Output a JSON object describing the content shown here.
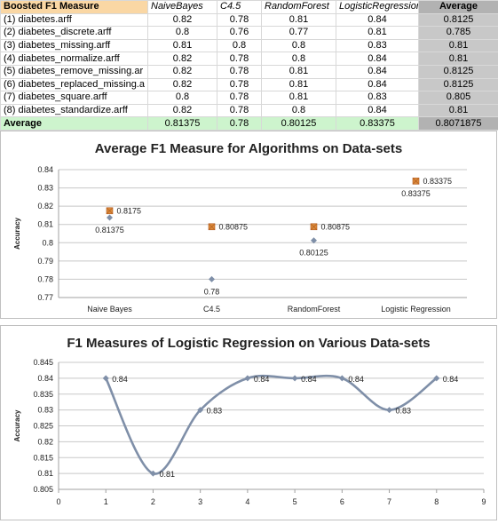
{
  "table": {
    "header": [
      "Boosted F1 Measure",
      "NaiveBayes",
      "C4.5",
      "RandomForest",
      "LogisticRegression",
      "Average"
    ],
    "rows": [
      [
        "(1) diabetes.arff",
        "0.82",
        "0.78",
        "0.81",
        "0.84",
        "0.8125"
      ],
      [
        "(2) diabetes_discrete.arff",
        "0.8",
        "0.76",
        "0.77",
        "0.81",
        "0.785"
      ],
      [
        "(3) diabetes_missing.arff",
        "0.81",
        "0.8",
        "0.8",
        "0.83",
        "0.81"
      ],
      [
        "(4) diabetes_normalize.arff",
        "0.82",
        "0.78",
        "0.8",
        "0.84",
        "0.81"
      ],
      [
        "(5) diabetes_remove_missing.ar",
        "0.82",
        "0.78",
        "0.81",
        "0.84",
        "0.8125"
      ],
      [
        "(6) diabetes_replaced_missing.a",
        "0.82",
        "0.78",
        "0.81",
        "0.84",
        "0.8125"
      ],
      [
        "(7) diabetes_square.arff",
        "0.8",
        "0.78",
        "0.81",
        "0.83",
        "0.805"
      ],
      [
        "(8) diabetes_standardize.arff",
        "0.82",
        "0.78",
        "0.8",
        "0.84",
        "0.81"
      ]
    ],
    "footer": [
      "Average",
      "0.81375",
      "0.78",
      "0.80125",
      "0.83375",
      "0.8071875"
    ]
  },
  "chart_data": [
    {
      "type": "scatter",
      "title": "Average F1 Measure for Algorithms on Data-sets",
      "xlabel": "",
      "ylabel": "Accuracy",
      "categories": [
        "Naive Bayes",
        "C4.5",
        "RandomForest",
        "Logistic Regression"
      ],
      "ylim": [
        0.77,
        0.84
      ],
      "yticks": [
        "0.77",
        "0.78",
        "0.79",
        "0.8",
        "0.81",
        "0.82",
        "0.83",
        "0.84"
      ],
      "grid": true,
      "series": [
        {
          "values": [
            0.81375,
            0.78,
            0.80125,
            0.83375
          ],
          "labels": [
            "0.81375",
            "0.78",
            "0.80125",
            "0.83375"
          ],
          "color": "#7f8fa8",
          "marker": "diamond"
        },
        {
          "values": [
            0.8175,
            0.80875,
            0.80875,
            0.83375
          ],
          "labels": [
            "0.8175",
            "0.80875",
            "0.80875",
            "0.83375"
          ],
          "color": "#d98a3a",
          "marker": "square"
        }
      ]
    },
    {
      "type": "line",
      "title": "F1 Measures of Logistic Regression on Various Data-sets",
      "xlabel": "",
      "ylabel": "Accuracy",
      "x": [
        1,
        2,
        3,
        4,
        5,
        6,
        7,
        8
      ],
      "y": [
        0.84,
        0.81,
        0.83,
        0.84,
        0.84,
        0.84,
        0.83,
        0.84
      ],
      "labels": [
        "0.84",
        "0.81",
        "0.83",
        "0.84",
        "0.84",
        "0.84",
        "0.83",
        "0.84"
      ],
      "xlim": [
        0,
        9
      ],
      "ylim": [
        0.805,
        0.845
      ],
      "xticks": [
        "0",
        "1",
        "2",
        "3",
        "4",
        "5",
        "6",
        "7",
        "8",
        "9"
      ],
      "yticks": [
        "0.805",
        "0.81",
        "0.815",
        "0.82",
        "0.825",
        "0.83",
        "0.835",
        "0.84",
        "0.845"
      ],
      "grid": true,
      "smooth": true,
      "color": "#7f8fa8"
    }
  ]
}
